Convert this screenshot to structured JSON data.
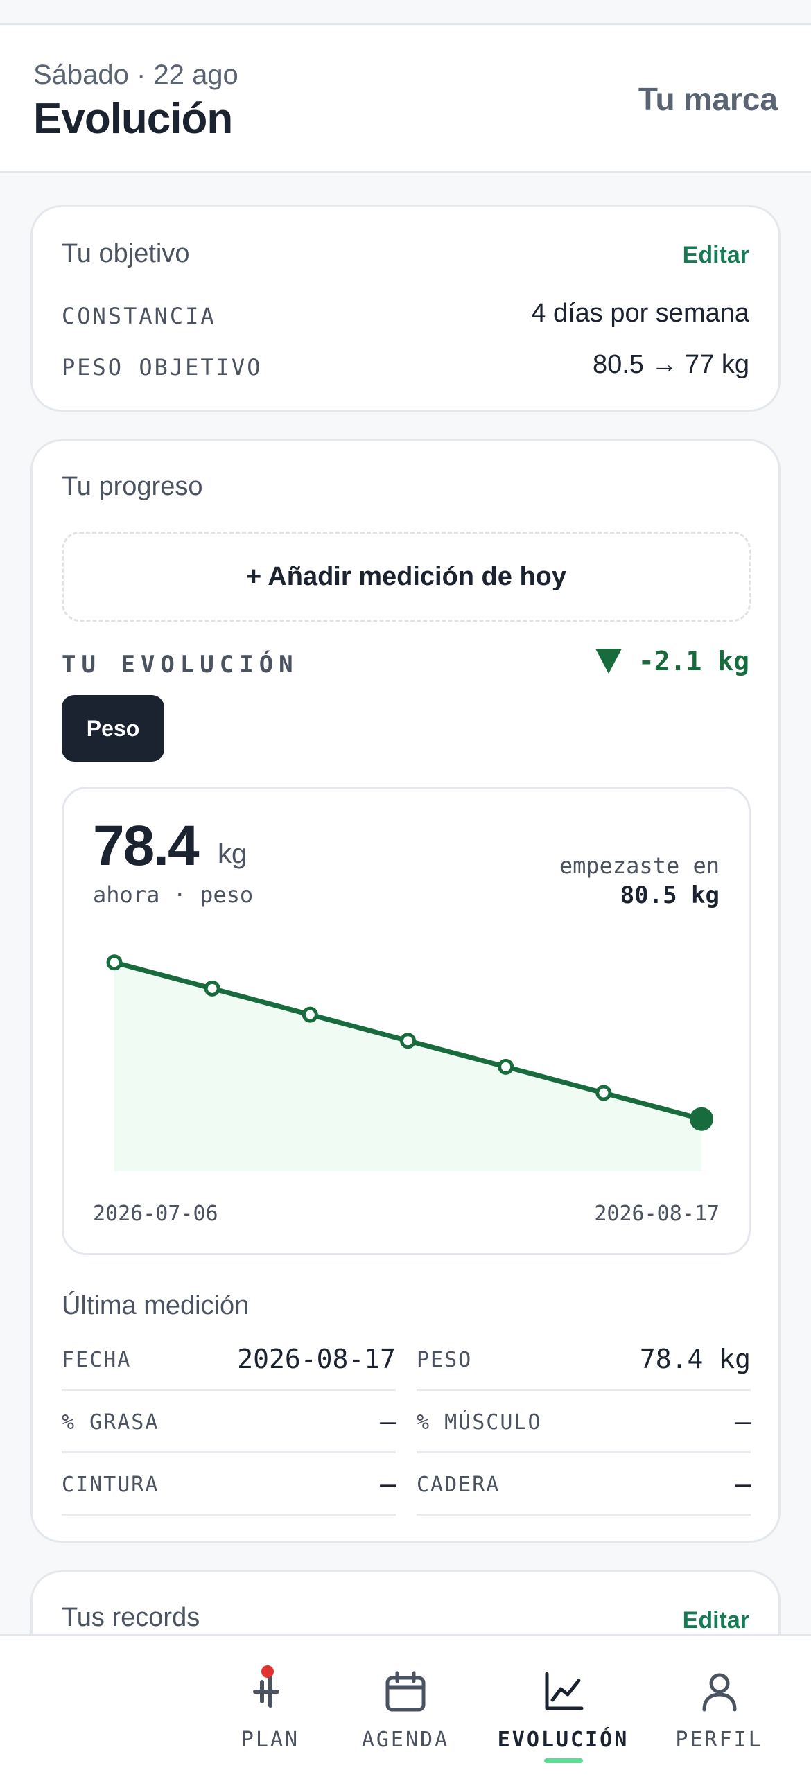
{
  "header": {
    "date": "Sábado · 22 ago",
    "title": "Evolución",
    "brand_link": "Tu marca"
  },
  "objective": {
    "title": "Tu objetivo",
    "edit": "Editar",
    "rows": [
      {
        "label": "CONSTANCIA",
        "value": "4 días por semana"
      },
      {
        "label": "PESO OBJETIVO",
        "value": "80.5 → 77 kg"
      }
    ]
  },
  "progress": {
    "title": "Tu progreso",
    "add_button": "+ Añadir medición de hoy",
    "evolution_label": "TU EVOLUCIÓN",
    "delta": "-2.1 kg",
    "metric_tab": "Peso",
    "current_value": "78.4",
    "current_unit": "kg",
    "current_caption": "ahora · peso",
    "start_caption": "empezaste en",
    "start_value": "80.5 kg",
    "colors": {
      "line": "#176b3c",
      "fill": "#f0fbf3"
    }
  },
  "chart_data": {
    "type": "area",
    "x": [
      "2026-07-06",
      "2026-07-13",
      "2026-07-20",
      "2026-07-27",
      "2026-08-03",
      "2026-08-10",
      "2026-08-17"
    ],
    "y": [
      80.5,
      80.15,
      79.8,
      79.45,
      79.1,
      78.75,
      78.4
    ],
    "x_tick_labels": [
      "2026-07-06",
      "2026-08-17"
    ],
    "ylim": [
      77.7,
      80.6
    ],
    "grid": false
  },
  "last_measurement": {
    "title": "Última medición",
    "cells": [
      {
        "label": "FECHA",
        "value": "2026-08-17"
      },
      {
        "label": "PESO",
        "value": "78.4 kg"
      },
      {
        "label": "% GRASA",
        "value": "—"
      },
      {
        "label": "% MÚSCULO",
        "value": "—"
      },
      {
        "label": "CINTURA",
        "value": "—"
      },
      {
        "label": "CADERA",
        "value": "—"
      }
    ]
  },
  "records": {
    "title": "Tus records",
    "edit": "Editar"
  },
  "bottom_nav": {
    "items": [
      {
        "label": "PLAN",
        "icon": "plan-icon"
      },
      {
        "label": "AGENDA",
        "icon": "calendar-icon"
      },
      {
        "label": "EVOLUCIÓN",
        "icon": "chart-icon"
      },
      {
        "label": "PERFIL",
        "icon": "user-icon"
      }
    ],
    "active": "EVOLUCIÓN"
  }
}
